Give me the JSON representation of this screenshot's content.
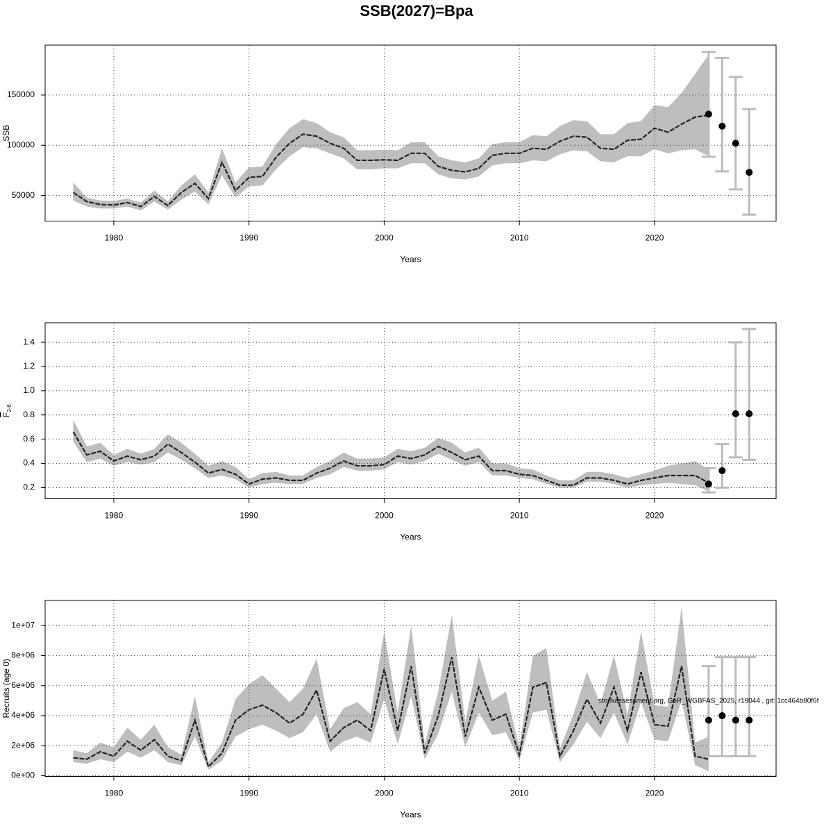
{
  "title": "SSB(2027)=Bpa",
  "chart_data": [
    {
      "type": "line",
      "ylabel": "SSB",
      "xlabel": "Years",
      "color": "#222222",
      "band_color": "#bebebe",
      "errorbar_color": "#bbbbbb",
      "point_color": "#000000",
      "grid": true,
      "xlim": [
        1974.92,
        2028.99
      ],
      "xticks": [
        1980,
        1990,
        2000,
        2010,
        2020
      ],
      "ylim": [
        24500,
        199700
      ],
      "yticks": [
        50000,
        100000,
        150000
      ],
      "x": [
        1977,
        1978,
        1979,
        1980,
        1981,
        1982,
        1983,
        1984,
        1985,
        1986,
        1987,
        1988,
        1989,
        1990,
        1991,
        1992,
        1993,
        1994,
        1995,
        1996,
        1997,
        1998,
        1999,
        2000,
        2001,
        2002,
        2003,
        2004,
        2005,
        2006,
        2007,
        2008,
        2009,
        2010,
        2011,
        2012,
        2013,
        2014,
        2015,
        2016,
        2017,
        2018,
        2019,
        2020,
        2021,
        2022,
        2023,
        2024
      ],
      "values": [
        53000,
        44000,
        41000,
        40500,
        43000,
        39000,
        49000,
        40000,
        53000,
        62000,
        47000,
        83000,
        55000,
        68000,
        69000,
        88000,
        102000,
        111000,
        109000,
        102000,
        97000,
        85000,
        85000,
        85500,
        85000,
        92000,
        92000,
        79000,
        75000,
        73500,
        77000,
        90000,
        92000,
        92000,
        97000,
        96000,
        104000,
        109000,
        108000,
        97000,
        96000,
        105000,
        106000,
        117000,
        113000,
        121000,
        128000,
        130000
      ],
      "lower": [
        45000,
        39000,
        37000,
        37000,
        39000,
        35000,
        44000,
        36000,
        46000,
        54000,
        41000,
        70000,
        48000,
        59000,
        60000,
        76000,
        89000,
        98000,
        97000,
        92000,
        87000,
        76000,
        76000,
        77000,
        77000,
        82000,
        82000,
        71000,
        67000,
        66000,
        69000,
        80000,
        82000,
        82000,
        85000,
        84000,
        91000,
        95000,
        94000,
        84000,
        83000,
        89000,
        89000,
        96000,
        92000,
        95000,
        96000,
        89000
      ],
      "upper": [
        63000,
        48000,
        45000,
        44500,
        47000,
        43000,
        55000,
        44000,
        60000,
        71000,
        53000,
        97000,
        63000,
        78000,
        79000,
        101000,
        117000,
        126000,
        122000,
        113000,
        108000,
        95000,
        95000,
        95500,
        95000,
        103000,
        103000,
        89000,
        85000,
        83000,
        87000,
        101000,
        103000,
        103000,
        110000,
        109000,
        119000,
        125000,
        124000,
        111000,
        111000,
        122000,
        124000,
        140000,
        138000,
        152000,
        171000,
        190000
      ],
      "forecast": {
        "x": [
          2024,
          2025,
          2026,
          2027
        ],
        "values": [
          131000,
          119000,
          102000,
          73000
        ],
        "lower": [
          88500,
          74000,
          56000,
          31000
        ],
        "upper": [
          193000,
          187000,
          168000,
          136000
        ]
      }
    },
    {
      "type": "line",
      "ylabel": "F",
      "ylabel_sub": "2-6",
      "xlabel": "Years",
      "color": "#222222",
      "band_color": "#bebebe",
      "errorbar_color": "#bbbbbb",
      "point_color": "#000000",
      "grid": true,
      "xlim": [
        1974.92,
        2028.99
      ],
      "xticks": [
        1980,
        1990,
        2000,
        2010,
        2020
      ],
      "ylim": [
        0.108,
        1.561
      ],
      "yticks": [
        0.2,
        0.4,
        0.6,
        0.8,
        {
          "value": 1,
          "label": "1.0"
        },
        1.2,
        1.4
      ],
      "x": [
        1977,
        1978,
        1979,
        1980,
        1981,
        1982,
        1983,
        1984,
        1985,
        1986,
        1987,
        1988,
        1989,
        1990,
        1991,
        1992,
        1993,
        1994,
        1995,
        1996,
        1997,
        1998,
        1999,
        2000,
        2001,
        2002,
        2003,
        2004,
        2005,
        2006,
        2007,
        2008,
        2009,
        2010,
        2011,
        2012,
        2013,
        2014,
        2015,
        2016,
        2017,
        2018,
        2019,
        2020,
        2021,
        2022,
        2023,
        2024
      ],
      "values": [
        0.66,
        0.47,
        0.5,
        0.42,
        0.46,
        0.43,
        0.46,
        0.56,
        0.49,
        0.41,
        0.32,
        0.35,
        0.31,
        0.23,
        0.27,
        0.28,
        0.26,
        0.26,
        0.32,
        0.36,
        0.42,
        0.38,
        0.38,
        0.39,
        0.46,
        0.44,
        0.47,
        0.54,
        0.49,
        0.43,
        0.46,
        0.34,
        0.34,
        0.31,
        0.3,
        0.26,
        0.22,
        0.22,
        0.28,
        0.28,
        0.26,
        0.23,
        0.26,
        0.28,
        0.3,
        0.3,
        0.3,
        0.24
      ],
      "lower": [
        0.58,
        0.41,
        0.44,
        0.38,
        0.41,
        0.39,
        0.41,
        0.49,
        0.43,
        0.36,
        0.28,
        0.3,
        0.27,
        0.2,
        0.23,
        0.24,
        0.23,
        0.23,
        0.28,
        0.31,
        0.37,
        0.34,
        0.34,
        0.35,
        0.41,
        0.39,
        0.42,
        0.48,
        0.43,
        0.38,
        0.41,
        0.3,
        0.3,
        0.28,
        0.27,
        0.23,
        0.2,
        0.2,
        0.25,
        0.25,
        0.23,
        0.2,
        0.22,
        0.23,
        0.24,
        0.23,
        0.22,
        0.17
      ],
      "upper": [
        0.76,
        0.54,
        0.57,
        0.47,
        0.52,
        0.48,
        0.52,
        0.64,
        0.57,
        0.48,
        0.38,
        0.42,
        0.37,
        0.27,
        0.32,
        0.33,
        0.3,
        0.3,
        0.37,
        0.42,
        0.49,
        0.44,
        0.44,
        0.45,
        0.52,
        0.5,
        0.53,
        0.61,
        0.57,
        0.49,
        0.53,
        0.4,
        0.4,
        0.36,
        0.35,
        0.3,
        0.26,
        0.26,
        0.33,
        0.33,
        0.31,
        0.28,
        0.31,
        0.34,
        0.38,
        0.4,
        0.42,
        0.35
      ],
      "forecast": {
        "x": [
          2024,
          2025,
          2026,
          2027
        ],
        "values": [
          0.23,
          0.34,
          0.81,
          0.81
        ],
        "lower": [
          0.16,
          0.2,
          0.45,
          0.43
        ],
        "upper": [
          0.36,
          0.56,
          1.4,
          1.51
        ]
      }
    },
    {
      "type": "line",
      "ylabel": "Recruits (age 0)",
      "xlabel": "Years",
      "annotation": "stockassessment.org, GoR_WGBFAS_2025, r19044 , git: 1cc464b80f6f",
      "color": "#222222",
      "band_color": "#bebebe",
      "errorbar_color": "#bbbbbb",
      "point_color": "#000000",
      "grid": true,
      "xlim": [
        1974.92,
        2028.99
      ],
      "xticks": [
        1980,
        1990,
        2000,
        2010,
        2020
      ],
      "ylim": [
        -46500,
        11674000
      ],
      "yticks": [
        {
          "value": 0,
          "label": "0e+00"
        },
        {
          "value": 2000000,
          "label": "2e+06"
        },
        {
          "value": 4000000,
          "label": "4e+06"
        },
        {
          "value": 6000000,
          "label": "6e+06"
        },
        {
          "value": 8000000,
          "label": "8e+06"
        },
        {
          "value": 10000000,
          "label": "1e+07"
        }
      ],
      "x": [
        1977,
        1978,
        1979,
        1980,
        1981,
        1982,
        1983,
        1984,
        1985,
        1986,
        1987,
        1988,
        1989,
        1990,
        1991,
        1992,
        1993,
        1994,
        1995,
        1996,
        1997,
        1998,
        1999,
        2000,
        2001,
        2002,
        2003,
        2004,
        2005,
        2006,
        2007,
        2008,
        2009,
        2010,
        2011,
        2012,
        2013,
        2014,
        2015,
        2016,
        2017,
        2018,
        2019,
        2020,
        2021,
        2022,
        2023,
        2024
      ],
      "values": [
        1200000,
        1100000,
        1600000,
        1300000,
        2300000,
        1700000,
        2400000,
        1300000,
        1000000,
        3700000,
        600000,
        1500000,
        3700000,
        4400000,
        4700000,
        4200000,
        3500000,
        4100000,
        5700000,
        2300000,
        3200000,
        3700000,
        3000000,
        7100000,
        3000000,
        7300000,
        1500000,
        4000000,
        7900000,
        2600000,
        5900000,
        3700000,
        4100000,
        1400000,
        5900000,
        6200000,
        1300000,
        3000000,
        5100000,
        3500000,
        5900000,
        3000000,
        6900000,
        3400000,
        3300000,
        7300000,
        1300000,
        1100000
      ],
      "lower": [
        900000,
        800000,
        1100000,
        900000,
        1600000,
        1200000,
        1700000,
        900000,
        700000,
        2600000,
        400000,
        1000000,
        2600000,
        3100000,
        3400000,
        3000000,
        2500000,
        2900000,
        4100000,
        1600000,
        2300000,
        2600000,
        2200000,
        5100000,
        2100000,
        5300000,
        1100000,
        2800000,
        5600000,
        1900000,
        4200000,
        2700000,
        2900000,
        1000000,
        4200000,
        4400000,
        900000,
        2100000,
        3600000,
        2500000,
        4200000,
        2100000,
        4900000,
        2400000,
        2300000,
        5000000,
        700000,
        300000
      ],
      "upper": [
        1700000,
        1500000,
        2200000,
        1900000,
        3200000,
        2400000,
        3400000,
        1900000,
        1400000,
        5300000,
        900000,
        2200000,
        5100000,
        6100000,
        6700000,
        5800000,
        4900000,
        5800000,
        7800000,
        3100000,
        4500000,
        4900000,
        4100000,
        9600000,
        4200000,
        10000000,
        2100000,
        5600000,
        10700000,
        3600000,
        8000000,
        5000000,
        5600000,
        1900000,
        8000000,
        8500000,
        1800000,
        4100000,
        6900000,
        4800000,
        8000000,
        4100000,
        9600000,
        4700000,
        4600000,
        11200000,
        2200000,
        2600000
      ],
      "forecast": {
        "x": [
          2024,
          2025,
          2026,
          2027
        ],
        "values": [
          3700000,
          4000000,
          3700000,
          3700000
        ],
        "lower": [
          1300000,
          1300000,
          1300000,
          1300000
        ],
        "upper": [
          7300000,
          7900000,
          7900000,
          7900000
        ]
      }
    }
  ]
}
